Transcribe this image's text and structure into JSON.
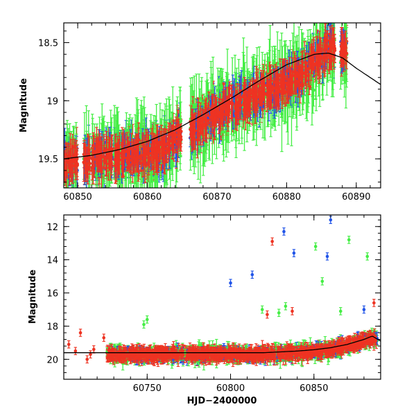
{
  "chart_data": [
    {
      "type": "scatter",
      "panel": "top",
      "ylabel": "Magnitude",
      "xlabel": "",
      "xlim": [
        60848,
        60893.5
      ],
      "ylim": [
        19.75,
        18.33
      ],
      "y_inverted": true,
      "xticks": [
        60850,
        60860,
        60870,
        60880,
        60890
      ],
      "xtick_labels": [
        "60850",
        "60860",
        "60870",
        "60880",
        "60890"
      ],
      "yticks": [
        18.5,
        19,
        19.5
      ],
      "ytick_labels": [
        "18.5",
        "19",
        "19.5"
      ],
      "series_colors": [
        "#2255e8",
        "#44ee44",
        "#ee3322"
      ],
      "model_curve": {
        "x": [
          60848,
          60852,
          60856,
          60860,
          60864,
          60868,
          60872,
          60876,
          60880,
          60884,
          60886,
          60888,
          60890,
          60893.5
        ],
        "y": [
          19.5,
          19.47,
          19.42,
          19.35,
          19.25,
          19.12,
          18.98,
          18.83,
          18.69,
          18.6,
          18.59,
          18.63,
          18.72,
          18.86
        ]
      },
      "observations": {
        "x_range": [
          60848.3,
          60888.5
        ],
        "trend_x": [
          60848,
          60855,
          60862,
          60866,
          60870,
          60876,
          60882,
          60886
        ],
        "trend_y": [
          19.52,
          19.48,
          19.42,
          19.25,
          19.1,
          18.95,
          18.78,
          18.55
        ],
        "clusters": [
          60848.5,
          60849.5,
          60851.3,
          60852.5,
          60853.4,
          60854.5,
          60855.6,
          60856.6,
          60857.5,
          60858.5,
          60859.5,
          60860.5,
          60861.4,
          60862.4,
          60863.4,
          60864.4,
          60866.6,
          60867.6,
          60868.5,
          60869.5,
          60870.5,
          60871.4,
          60872.5,
          60873.5,
          60874.4,
          60875.5,
          60876.5,
          60877.5,
          60878.5,
          60879.5,
          60880.5,
          60881.5,
          60882.5,
          60883.5,
          60884.5,
          60885.5,
          60886.5,
          60888.2
        ]
      }
    },
    {
      "type": "scatter",
      "panel": "bottom",
      "ylabel": "Magnitude",
      "xlabel": "HJD−2400000",
      "xlim": [
        60700,
        60890
      ],
      "ylim": [
        21.2,
        11.3
      ],
      "y_inverted": true,
      "xticks": [
        60750,
        60800,
        60850
      ],
      "xtick_labels": [
        "60750",
        "60800",
        "60850"
      ],
      "yticks": [
        12,
        14,
        16,
        18,
        20
      ],
      "ytick_labels": [
        "12",
        "14",
        "16",
        "18",
        "20"
      ],
      "series_colors": [
        "#2255e8",
        "#44ee44",
        "#ee3322"
      ],
      "model_curve": {
        "x": [
          60700,
          60720,
          60740,
          60760,
          60780,
          60800,
          60820,
          60840,
          60850,
          60860,
          60870,
          60880,
          60885,
          60890
        ],
        "y": [
          19.6,
          19.6,
          19.6,
          19.6,
          19.6,
          19.6,
          19.6,
          19.5,
          19.42,
          19.3,
          19.1,
          18.8,
          18.6,
          18.9
        ]
      },
      "early_points": [
        {
          "x": 60703,
          "y": 19.1,
          "color": 2
        },
        {
          "x": 60707,
          "y": 19.5,
          "color": 2
        },
        {
          "x": 60710,
          "y": 18.4,
          "color": 2
        },
        {
          "x": 60714,
          "y": 20.0,
          "color": 2
        },
        {
          "x": 60716,
          "y": 19.7,
          "color": 2
        },
        {
          "x": 60718,
          "y": 19.4,
          "color": 2
        },
        {
          "x": 60724,
          "y": 18.7,
          "color": 2
        }
      ],
      "outliers": [
        {
          "x": 60800,
          "y": 15.4,
          "color": 0
        },
        {
          "x": 60813,
          "y": 14.9,
          "color": 0
        },
        {
          "x": 60825,
          "y": 12.9,
          "color": 2
        },
        {
          "x": 60832,
          "y": 12.3,
          "color": 0
        },
        {
          "x": 60838,
          "y": 13.6,
          "color": 0
        },
        {
          "x": 60851,
          "y": 13.2,
          "color": 1
        },
        {
          "x": 60855,
          "y": 15.3,
          "color": 1
        },
        {
          "x": 60858,
          "y": 13.8,
          "color": 0
        },
        {
          "x": 60860,
          "y": 11.6,
          "color": 0
        },
        {
          "x": 60871,
          "y": 12.8,
          "color": 1
        },
        {
          "x": 60882,
          "y": 13.8,
          "color": 1
        },
        {
          "x": 60886,
          "y": 16.6,
          "color": 2
        },
        {
          "x": 60750,
          "y": 17.6,
          "color": 1
        },
        {
          "x": 60748,
          "y": 17.9,
          "color": 1
        },
        {
          "x": 60822,
          "y": 17.3,
          "color": 2
        },
        {
          "x": 60819,
          "y": 17.0,
          "color": 1
        },
        {
          "x": 60829,
          "y": 17.2,
          "color": 1
        },
        {
          "x": 60833,
          "y": 16.8,
          "color": 1
        },
        {
          "x": 60837,
          "y": 17.1,
          "color": 2
        },
        {
          "x": 60866,
          "y": 17.1,
          "color": 1
        },
        {
          "x": 60880,
          "y": 17.0,
          "color": 0
        }
      ]
    }
  ]
}
